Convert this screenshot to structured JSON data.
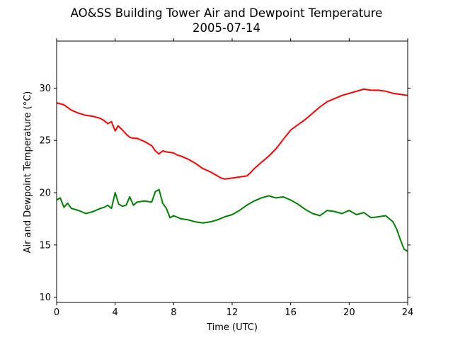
{
  "chart_data": {
    "type": "line",
    "title": "AO&SS Building Tower Air and Dewpoint Temperature",
    "subtitle": "2005-07-14",
    "xlabel": "Time (UTC)",
    "ylabel": "Air and Dewpoint Temperature (°C)",
    "xlim": [
      0,
      24
    ],
    "ylim": [
      9.5,
      34.5
    ],
    "xticks": [
      0,
      4,
      8,
      12,
      16,
      20,
      24
    ],
    "yticks": [
      10,
      15,
      20,
      25,
      30
    ],
    "grid": false,
    "legend": "none",
    "series": [
      {
        "color": "#ff0000",
        "x": [
          0,
          0.5,
          1,
          1.5,
          2,
          2.5,
          3,
          3.25,
          3.5,
          3.75,
          4,
          4.2,
          4.5,
          4.75,
          5,
          5.25,
          5.5,
          6,
          6.5,
          6.75,
          7,
          7.25,
          7.5,
          8,
          8.25,
          8.5,
          9,
          9.5,
          10,
          10.5,
          11,
          11.25,
          11.5,
          12,
          12.5,
          13,
          13.25,
          13.5,
          14,
          14.5,
          15,
          15.5,
          16,
          16.5,
          17,
          17.5,
          18,
          18.5,
          19,
          19.5,
          20,
          20.5,
          21,
          21.5,
          22,
          22.5,
          23,
          23.5,
          24
        ],
        "values": [
          28.6,
          28.4,
          27.9,
          27.6,
          27.4,
          27.3,
          27.1,
          26.9,
          26.6,
          26.8,
          25.9,
          26.4,
          26.0,
          25.6,
          25.3,
          25.2,
          25.2,
          24.9,
          24.5,
          24.0,
          23.7,
          24.0,
          23.9,
          23.8,
          23.6,
          23.5,
          23.2,
          22.8,
          22.3,
          22.0,
          21.6,
          21.4,
          21.3,
          21.4,
          21.5,
          21.6,
          21.9,
          22.3,
          22.9,
          23.5,
          24.2,
          25.1,
          26.0,
          26.5,
          27.0,
          27.6,
          28.2,
          28.7,
          29.0,
          29.3,
          29.5,
          29.7,
          29.9,
          29.8,
          29.8,
          29.7,
          29.5,
          29.4,
          29.3
        ]
      },
      {
        "color": "#008000",
        "x": [
          0,
          0.25,
          0.5,
          0.75,
          1,
          1.5,
          2,
          2.5,
          3,
          3.25,
          3.5,
          3.75,
          4,
          4.25,
          4.5,
          4.75,
          5,
          5.25,
          5.5,
          6,
          6.5,
          6.75,
          7,
          7.25,
          7.5,
          7.75,
          8,
          8.5,
          9,
          9.5,
          10,
          10.5,
          11,
          11.5,
          12,
          12.5,
          13,
          13.5,
          14,
          14.5,
          15,
          15.5,
          16,
          16.5,
          17,
          17.5,
          18,
          18.5,
          19,
          19.5,
          20,
          20.5,
          21,
          21.5,
          22,
          22.5,
          23,
          23.25,
          23.5,
          23.75,
          24
        ],
        "values": [
          19.3,
          19.5,
          18.6,
          19.0,
          18.5,
          18.3,
          18.0,
          18.2,
          18.5,
          18.6,
          18.8,
          18.5,
          20.0,
          18.9,
          18.7,
          18.8,
          19.6,
          18.8,
          19.1,
          19.2,
          19.1,
          20.1,
          20.3,
          19.0,
          18.5,
          17.6,
          17.8,
          17.5,
          17.4,
          17.2,
          17.1,
          17.2,
          17.4,
          17.7,
          17.9,
          18.3,
          18.8,
          19.2,
          19.5,
          19.7,
          19.5,
          19.6,
          19.3,
          18.9,
          18.4,
          18.0,
          17.8,
          18.3,
          18.2,
          18.0,
          18.3,
          17.9,
          18.1,
          17.6,
          17.7,
          17.8,
          17.2,
          16.5,
          15.5,
          14.6,
          14.4
        ]
      }
    ]
  }
}
